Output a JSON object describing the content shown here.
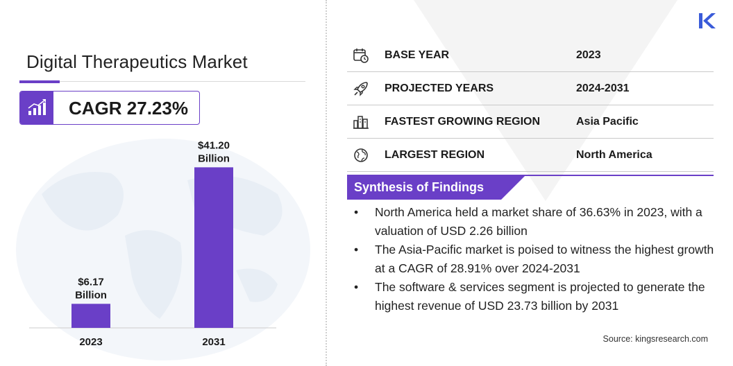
{
  "title": "Digital Therapeutics Market",
  "cagr": "CAGR 27.23%",
  "icons": {
    "cagr": "growth-chart-icon",
    "base_year": "calendar-clock-icon",
    "projected_years": "rocket-icon",
    "fastest_region": "city-skyline-icon",
    "largest_region": "globe-icon",
    "logo": "kings-research-logo"
  },
  "colors": {
    "accent": "#6a3fc7",
    "bar": "#6a3fc7"
  },
  "chart_data": {
    "type": "bar",
    "categories": [
      "2023",
      "2031"
    ],
    "values": [
      6.17,
      41.2
    ],
    "data_labels": [
      [
        "$6.17",
        "Billion"
      ],
      [
        "$41.20",
        "Billion"
      ]
    ],
    "unit": "Billion USD",
    "ylim": [
      0,
      45
    ],
    "grid": false
  },
  "info": [
    {
      "label": "BASE YEAR",
      "value": "2023"
    },
    {
      "label": "PROJECTED YEARS",
      "value": "2024-2031"
    },
    {
      "label": "FASTEST GROWING REGION",
      "value": "Asia Pacific"
    },
    {
      "label": "LARGEST REGION",
      "value": "North America"
    }
  ],
  "synthesis": {
    "title": "Synthesis of Findings",
    "bullet": "•",
    "items": [
      "North America held a market share of 36.63% in 2023, with a valuation of USD 2.26 billion",
      "The Asia-Pacific market is poised to witness the highest growth at a CAGR of 28.91% over 2024-2031",
      "The software & services segment is projected to generate the highest revenue of USD 23.73 billion by 2031"
    ]
  },
  "source": "Source:  kingsresearch.com"
}
